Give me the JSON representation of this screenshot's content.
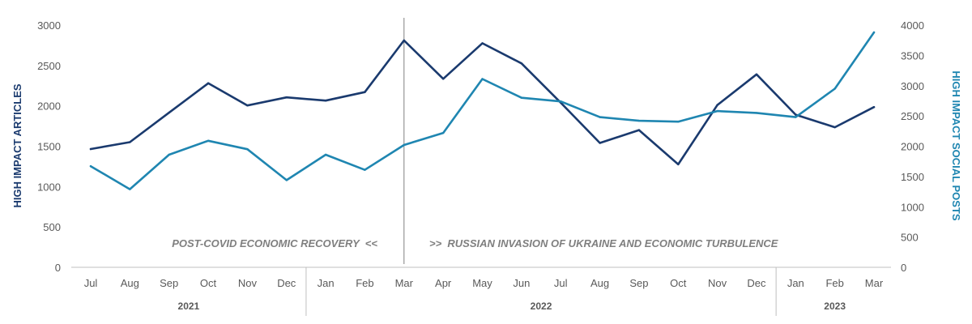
{
  "chart_data": {
    "type": "line",
    "categories": [
      "Jul",
      "Aug",
      "Sep",
      "Oct",
      "Nov",
      "Dec",
      "Jan",
      "Feb",
      "Mar",
      "Apr",
      "May",
      "Jun",
      "Jul",
      "Aug",
      "Sep",
      "Oct",
      "Nov",
      "Dec",
      "Jan",
      "Feb",
      "Mar"
    ],
    "year_groups": [
      {
        "label": "2021",
        "count": 6
      },
      {
        "label": "2022",
        "count": 12
      },
      {
        "label": "2023",
        "count": 3
      }
    ],
    "y_left": {
      "label": "HIGH IMPACT ARTICLES",
      "ylim": [
        0,
        3000
      ],
      "ticks": [
        "0",
        "500",
        "1000",
        "1500",
        "2000",
        "2500",
        "3000"
      ]
    },
    "y_right": {
      "label": "HIGH IMPACT SOCIAL POSTS",
      "ylim": [
        0,
        4000
      ],
      "ticks": [
        "0",
        "500",
        "1000",
        "1500",
        "2000",
        "2500",
        "3000",
        "3500",
        "4000"
      ]
    },
    "series": [
      {
        "axis": "left",
        "color": "#1a3a6e",
        "values": [
          1465,
          1550,
          1915,
          2280,
          2005,
          2105,
          2065,
          2170,
          2810,
          2335,
          2775,
          2525,
          2040,
          1540,
          1700,
          1275,
          2010,
          2390,
          1890,
          1735,
          1985
        ]
      },
      {
        "axis": "right",
        "color": "#1f86b1",
        "values": [
          1670,
          1290,
          1860,
          2090,
          1950,
          1440,
          1860,
          1610,
          2020,
          2220,
          3110,
          2800,
          2740,
          2480,
          2420,
          2405,
          2580,
          2550,
          2480,
          2950,
          3880
        ]
      }
    ],
    "annotations": {
      "divider_after_index": 8,
      "left_text": "POST-COVID ECONOMIC RECOVERY  <<",
      "right_text": ">>  RUSSIAN INVASION OF UKRAINE AND ECONOMIC TURBULENCE"
    },
    "grid": false,
    "legend": "none"
  }
}
